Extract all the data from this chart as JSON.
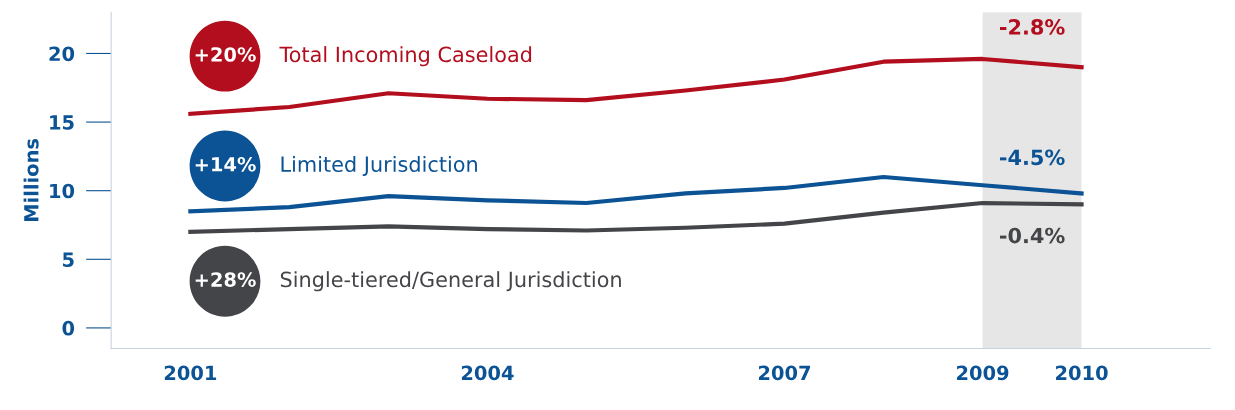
{
  "chart_data": {
    "type": "line",
    "ylabel": "Millions",
    "x": [
      2001,
      2002,
      2003,
      2004,
      2005,
      2006,
      2007,
      2008,
      2009,
      2010
    ],
    "series": [
      {
        "name": "Total Incoming Caseload",
        "color": "#b20e1e",
        "values": [
          15.6,
          16.1,
          17.1,
          16.7,
          16.6,
          17.3,
          18.1,
          19.4,
          19.6,
          19.0
        ]
      },
      {
        "name": "Limited Jurisdiction",
        "color": "#0b5394",
        "values": [
          8.5,
          8.8,
          9.6,
          9.3,
          9.1,
          9.8,
          10.2,
          11.0,
          10.4,
          9.8
        ]
      },
      {
        "name": "Single-tiered/General Jurisdiction",
        "color": "#444548",
        "values": [
          7.0,
          7.2,
          7.4,
          7.2,
          7.1,
          7.3,
          7.6,
          8.4,
          9.1,
          9.0
        ]
      }
    ],
    "annotations": [
      "+20%",
      "+14%",
      "+28%",
      "-2.8%",
      "-4.5%",
      "-0.4%"
    ],
    "bands": [
      {
        "axis": "x",
        "from": 2009,
        "to": 2010,
        "color": "#e6e6e6"
      }
    ],
    "xlim": [
      2000.2,
      2011.3
    ],
    "ylim": [
      -1.5,
      23
    ],
    "xticks": [
      2001,
      2004,
      2007,
      2009,
      2010
    ],
    "yticks": [
      0,
      5,
      10,
      15,
      20
    ],
    "grid": false,
    "legend": false,
    "marker": "none",
    "line_style": "solid"
  }
}
